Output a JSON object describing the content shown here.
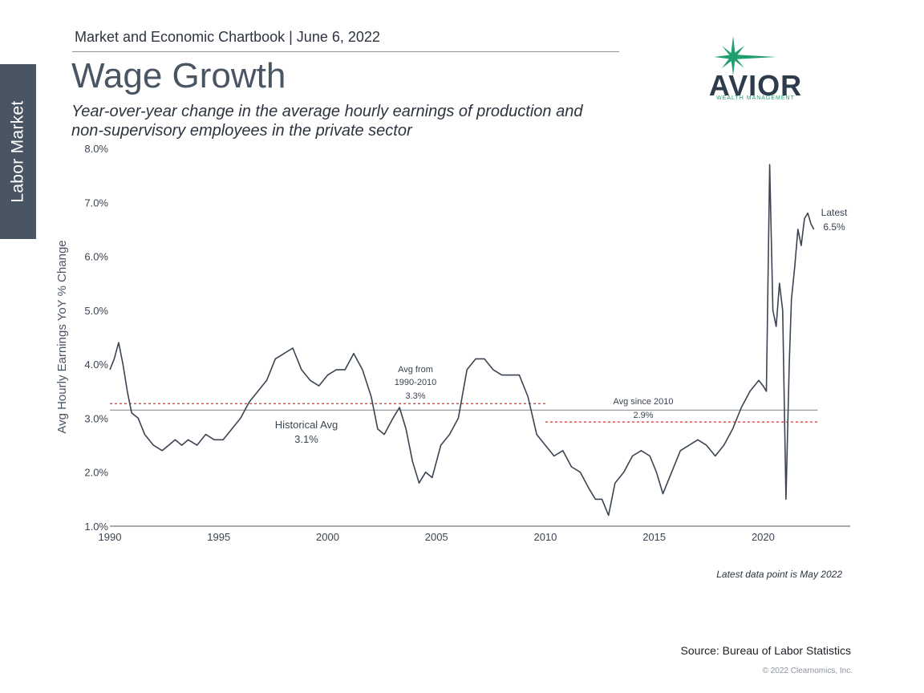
{
  "sidebar": {
    "label": "Labor Market"
  },
  "header": {
    "text": "Market and Economic Chartbook | June 6, 2022"
  },
  "title": "Wage Growth",
  "subtitle": "Year-over-year change in the average hourly earnings of production and non-supervisory employees in the private sector",
  "logo": {
    "name": "AVIOR",
    "tagline": "WEALTH MANAGEMENT",
    "star_color": "#1f9e6e"
  },
  "note": "Latest data point is May 2022",
  "source": "Source: Bureau of Labor Statistics",
  "copyright": "© 2022 Clearnomics, Inc.",
  "colors": {
    "line": "#3b4452",
    "avg_solid": "#8c939c",
    "avg_dotted": "#d9534f",
    "text": "#3b4452"
  },
  "chart_data": {
    "type": "line",
    "ylabel": "Avg Hourly Earnings YoY % Change",
    "xlabel": "",
    "xlim": [
      1990,
      2024
    ],
    "ylim": [
      1.0,
      8.0
    ],
    "x_ticks": [
      "1990",
      "1995",
      "2000",
      "2005",
      "2010",
      "2015",
      "2020"
    ],
    "y_ticks": [
      "1.0%",
      "2.0%",
      "3.0%",
      "4.0%",
      "5.0%",
      "6.0%",
      "7.0%",
      "8.0%"
    ],
    "grid": false,
    "series": [
      {
        "x": [
          1990.0,
          1990.2,
          1990.4,
          1990.6,
          1990.8,
          1991.0,
          1991.3,
          1991.6,
          1992.0,
          1992.4,
          1992.7,
          1993.0,
          1993.3,
          1993.6,
          1994.0,
          1994.4,
          1994.8,
          1995.2,
          1995.6,
          1996.0,
          1996.4,
          1996.8,
          1997.2,
          1997.6,
          1998.0,
          1998.4,
          1998.8,
          1999.2,
          1999.6,
          2000.0,
          2000.4,
          2000.8,
          2001.2,
          2001.6,
          2002.0,
          2002.3,
          2002.6,
          2003.0,
          2003.3,
          2003.6,
          2003.9,
          2004.2,
          2004.5,
          2004.8,
          2005.2,
          2005.6,
          2006.0,
          2006.4,
          2006.8,
          2007.2,
          2007.6,
          2008.0,
          2008.4,
          2008.8,
          2009.2,
          2009.6,
          2010.0,
          2010.4,
          2010.8,
          2011.2,
          2011.6,
          2012.0,
          2012.3,
          2012.6,
          2012.9,
          2013.2,
          2013.6,
          2014.0,
          2014.4,
          2014.8,
          2015.1,
          2015.4,
          2015.8,
          2016.2,
          2016.6,
          2017.0,
          2017.4,
          2017.8,
          2018.2,
          2018.6,
          2019.0,
          2019.4,
          2019.8,
          2020.0,
          2020.15,
          2020.3,
          2020.45,
          2020.6,
          2020.75,
          2020.9,
          2021.05,
          2021.2,
          2021.3,
          2021.45,
          2021.6,
          2021.75,
          2021.9,
          2022.05,
          2022.2,
          2022.33
        ],
        "y": [
          3.9,
          4.1,
          4.4,
          4.0,
          3.5,
          3.1,
          3.0,
          2.7,
          2.5,
          2.4,
          2.5,
          2.6,
          2.5,
          2.6,
          2.5,
          2.7,
          2.6,
          2.6,
          2.8,
          3.0,
          3.3,
          3.5,
          3.7,
          4.1,
          4.2,
          4.3,
          3.9,
          3.7,
          3.6,
          3.8,
          3.9,
          3.9,
          4.2,
          3.9,
          3.4,
          2.8,
          2.7,
          3.0,
          3.2,
          2.8,
          2.2,
          1.8,
          2.0,
          1.9,
          2.5,
          2.7,
          3.0,
          3.9,
          4.1,
          4.1,
          3.9,
          3.8,
          3.8,
          3.8,
          3.4,
          2.7,
          2.5,
          2.3,
          2.4,
          2.1,
          2.0,
          1.7,
          1.5,
          1.5,
          1.2,
          1.8,
          2.0,
          2.3,
          2.4,
          2.3,
          2.0,
          1.6,
          2.0,
          2.4,
          2.5,
          2.6,
          2.5,
          2.3,
          2.5,
          2.8,
          3.2,
          3.5,
          3.7,
          3.6,
          3.5,
          7.7,
          5.0,
          4.7,
          5.5,
          5.0,
          1.5,
          4.0,
          5.2,
          5.8,
          6.5,
          6.2,
          6.7,
          6.8,
          6.6,
          6.5
        ]
      }
    ],
    "reference_lines": [
      {
        "label": "Historical Avg",
        "value_label": "3.1%",
        "y": 3.15,
        "x_start": 1990,
        "x_end": 2022.5,
        "style": "solid"
      },
      {
        "label": "Avg from 1990-2010",
        "value_label": "3.3%",
        "y": 3.27,
        "x_start": 1990,
        "x_end": 2010,
        "style": "dotted"
      },
      {
        "label": "Avg since 2010",
        "value_label": "2.9%",
        "y": 2.93,
        "x_start": 2010,
        "x_end": 2022.5,
        "style": "dotted"
      }
    ],
    "annotations": {
      "latest_label": "Latest",
      "latest_value": "6.5%",
      "avg_from_line1": "Avg from",
      "avg_from_line2": "1990-2010",
      "avg_from_value": "3.3%",
      "avg_since_line1": "Avg since 2010",
      "avg_since_value": "2.9%",
      "hist_line1": "Historical Avg",
      "hist_value": "3.1%"
    }
  }
}
